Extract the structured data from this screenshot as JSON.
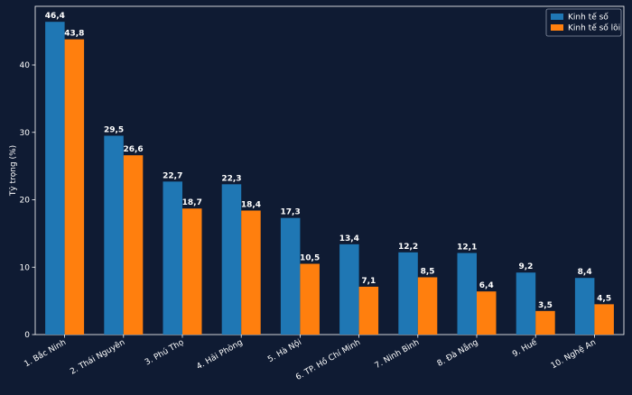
{
  "chart_data": {
    "type": "bar",
    "title": "",
    "xlabel": "",
    "ylabel": "Tỷ trọng (%)",
    "ylim": [
      0,
      48.7
    ],
    "yticks": [
      0,
      10,
      20,
      30,
      40
    ],
    "categories": [
      "1. Bắc Ninh",
      "2. Thái Nguyên",
      "3. Phú Thọ",
      "4. Hải Phòng",
      "5. Hà Nội",
      "6. TP. Hồ Chí Minh",
      "7. Ninh Bình",
      "8. Đà Nẵng",
      "9. Huế",
      "10. Nghệ An"
    ],
    "series": [
      {
        "name": "Kinh tế số",
        "color": "#1f77b4",
        "values": [
          46.4,
          29.5,
          22.7,
          22.3,
          17.3,
          13.4,
          12.2,
          12.1,
          9.2,
          8.4
        ],
        "labels": [
          "46,4",
          "29,5",
          "22,7",
          "22,3",
          "17,3",
          "13,4",
          "12,2",
          "12,1",
          "9,2",
          "8,4"
        ]
      },
      {
        "name": "Kinh tế số lõi",
        "color": "#ff7f0e",
        "values": [
          43.8,
          26.6,
          18.7,
          18.4,
          10.5,
          7.1,
          8.5,
          6.4,
          3.5,
          4.5
        ],
        "labels": [
          "43,8",
          "26,6",
          "18,7",
          "18,4",
          "10,5",
          "7,1",
          "8,5",
          "6,4",
          "3,5",
          "4,5"
        ]
      }
    ],
    "legend_position": "top-right",
    "grid": false,
    "axes_color": "#ffffff",
    "background_color": "#0f1b33"
  }
}
